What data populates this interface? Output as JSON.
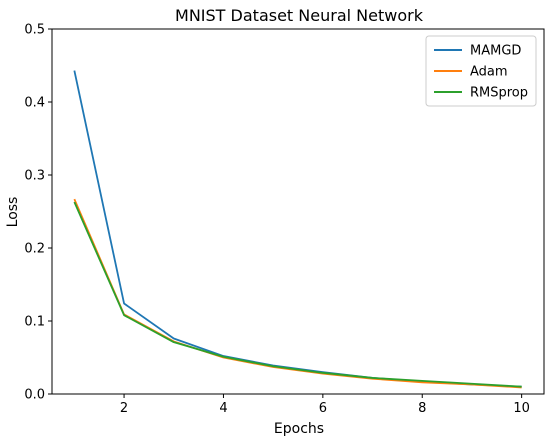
{
  "chart_data": {
    "type": "line",
    "title": "MNIST Dataset Neural Network",
    "xlabel": "Epochs",
    "ylabel": "Loss",
    "xlim": [
      0.55,
      10.45
    ],
    "ylim": [
      0,
      0.5
    ],
    "xticks": [
      2,
      4,
      6,
      8,
      10
    ],
    "yticks": [
      0.0,
      0.1,
      0.2,
      0.3,
      0.4,
      0.5
    ],
    "ytick_labels": [
      "0.0",
      "0.1",
      "0.2",
      "0.3",
      "0.4",
      "0.5"
    ],
    "grid": false,
    "legend_position": "top-right",
    "x": [
      1,
      2,
      3,
      4,
      5,
      6,
      7,
      8,
      9,
      10
    ],
    "series": [
      {
        "name": "MAMGD",
        "color": "#1f77b4",
        "values": [
          0.443,
          0.124,
          0.076,
          0.052,
          0.039,
          0.03,
          0.022,
          0.017,
          0.013,
          0.01
        ]
      },
      {
        "name": "Adam",
        "color": "#ff7f0e",
        "values": [
          0.267,
          0.109,
          0.072,
          0.05,
          0.037,
          0.028,
          0.021,
          0.016,
          0.013,
          0.009
        ]
      },
      {
        "name": "RMSprop",
        "color": "#2ca02c",
        "values": [
          0.263,
          0.108,
          0.071,
          0.051,
          0.038,
          0.029,
          0.022,
          0.018,
          0.014,
          0.01
        ]
      }
    ]
  }
}
